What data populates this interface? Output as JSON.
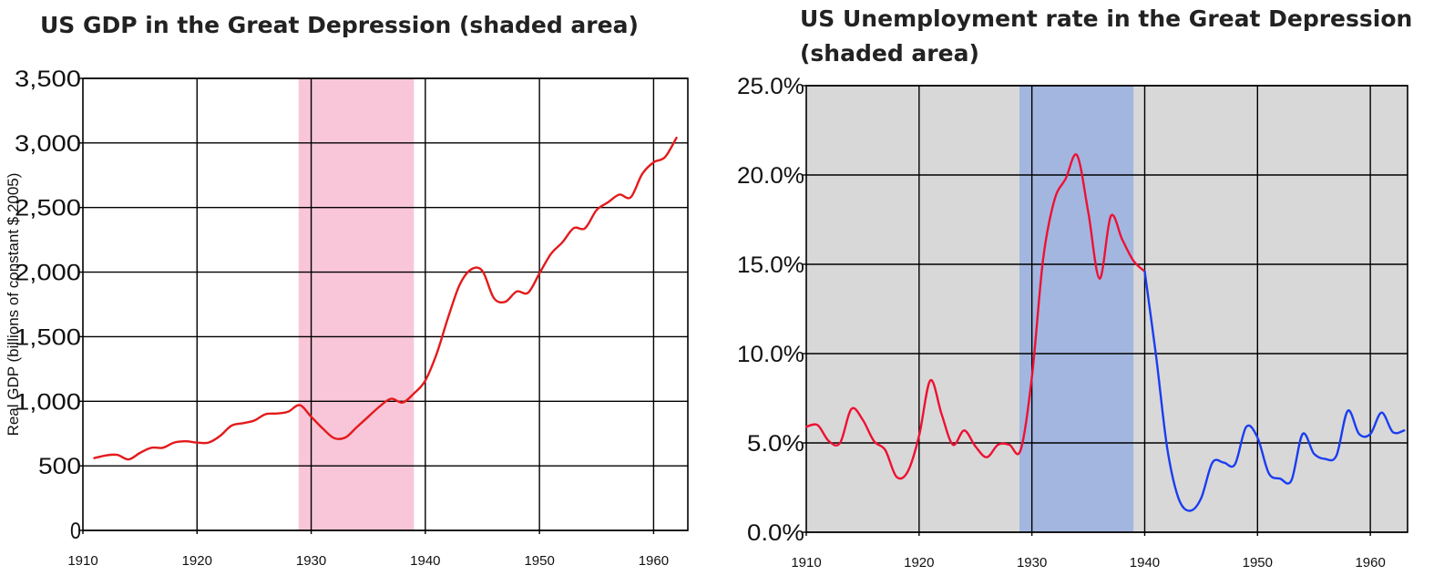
{
  "chart_data": [
    {
      "type": "line",
      "title": "US GDP in the Great Depression (shaded area)",
      "xlabel": "",
      "ylabel": "Real GDP (billions of  constant $ 2005)",
      "xlim": [
        1910,
        1963
      ],
      "ylim": [
        0,
        3500
      ],
      "x_ticks": [
        1910,
        1920,
        1930,
        1940,
        1950,
        1960
      ],
      "y_ticks": [
        0,
        500,
        1000,
        1500,
        2000,
        2500,
        3000,
        3500
      ],
      "y_tick_labels": [
        "0",
        "500",
        "1,000",
        "1,500",
        "2,000",
        "2,500",
        "3,000",
        "3,500"
      ],
      "grid": true,
      "shaded_range": [
        1928.9,
        1939
      ],
      "colors": {
        "line": "#e31a1c",
        "shade": "#f8c6d8",
        "grid": "#000000",
        "background": "#ffffff"
      },
      "series": [
        {
          "color": "#e31a1c",
          "x": [
            1911,
            1912,
            1913,
            1914,
            1915,
            1916,
            1917,
            1918,
            1919,
            1920,
            1921,
            1922,
            1923,
            1924,
            1925,
            1926,
            1927,
            1928,
            1929,
            1930,
            1931,
            1932,
            1933,
            1934,
            1935,
            1936,
            1937,
            1938,
            1939,
            1940,
            1941,
            1942,
            1943,
            1944,
            1945,
            1946,
            1947,
            1948,
            1949,
            1950,
            1951,
            1952,
            1953,
            1954,
            1955,
            1956,
            1957,
            1958,
            1959,
            1960,
            1961,
            1962
          ],
          "y": [
            560,
            580,
            585,
            550,
            600,
            640,
            640,
            680,
            690,
            680,
            680,
            730,
            810,
            830,
            850,
            900,
            905,
            920,
            970,
            880,
            790,
            715,
            720,
            800,
            880,
            960,
            1020,
            990,
            1060,
            1160,
            1370,
            1650,
            1900,
            2020,
            2010,
            1800,
            1770,
            1850,
            1840,
            1990,
            2140,
            2230,
            2340,
            2340,
            2480,
            2540,
            2600,
            2580,
            2760,
            2850,
            2890,
            3040
          ]
        }
      ]
    },
    {
      "type": "line",
      "title": "US Unemployment rate in the Great Depression (shaded area)",
      "xlabel": "",
      "ylabel": "",
      "xlim": [
        1910,
        1963.3
      ],
      "ylim": [
        0,
        25
      ],
      "x_ticks": [
        1910,
        1920,
        1930,
        1940,
        1950,
        1960
      ],
      "y_ticks": [
        0,
        5,
        10,
        15,
        20,
        25
      ],
      "y_tick_labels": [
        "0.0%",
        "5.0%",
        "10.0%",
        "15.0%",
        "20.0%",
        "25.0%"
      ],
      "grid": true,
      "shaded_range": [
        1928.9,
        1939
      ],
      "colors": {
        "background": "#d8d8d8",
        "shade": "#a3b6e0",
        "grid": "#000000",
        "line_before_1940": "#ee1133",
        "line_after_1940": "#1a3df0"
      },
      "series": [
        {
          "color": "#ee1133",
          "x": [
            1910,
            1911,
            1912,
            1913,
            1914,
            1915,
            1916,
            1917,
            1918,
            1919,
            1920,
            1921,
            1922,
            1923,
            1924,
            1925,
            1926,
            1927,
            1928,
            1929,
            1930,
            1931,
            1932,
            1933,
            1934,
            1935,
            1936,
            1937,
            1938,
            1939,
            1940
          ],
          "y": [
            5.9,
            6.0,
            5.1,
            5.0,
            6.9,
            6.3,
            5.1,
            4.6,
            3.1,
            3.4,
            5.4,
            8.5,
            6.6,
            4.9,
            5.7,
            4.8,
            4.2,
            4.9,
            4.9,
            4.6,
            8.7,
            15.3,
            18.6,
            19.8,
            21.1,
            17.9,
            14.2,
            17.7,
            16.4,
            15.2,
            14.6
          ]
        },
        {
          "color": "#1a3df0",
          "x": [
            1940,
            1941,
            1942,
            1943,
            1944,
            1945,
            1946,
            1947,
            1948,
            1949,
            1950,
            1951,
            1952,
            1953,
            1954,
            1955,
            1956,
            1957,
            1958,
            1959,
            1960,
            1961,
            1962,
            1963
          ],
          "y": [
            14.6,
            9.9,
            4.7,
            1.9,
            1.2,
            1.9,
            3.9,
            3.9,
            3.8,
            5.9,
            5.3,
            3.3,
            3.0,
            2.9,
            5.5,
            4.4,
            4.1,
            4.3,
            6.8,
            5.5,
            5.5,
            6.7,
            5.6,
            5.7
          ]
        }
      ]
    }
  ]
}
